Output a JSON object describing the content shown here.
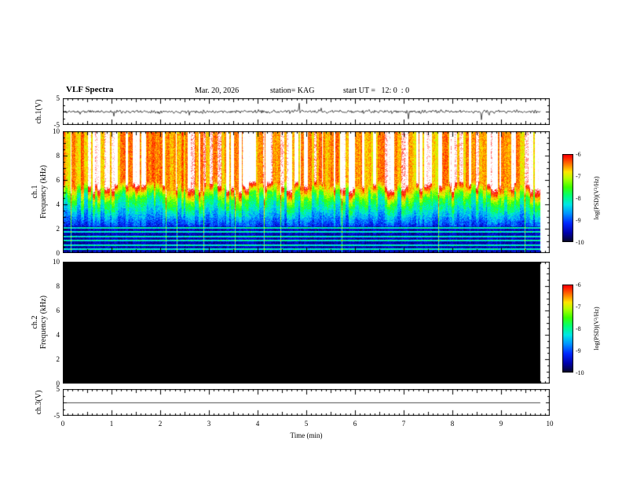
{
  "header": {
    "title": "VLF Spectra",
    "date": "Mar. 20, 2026",
    "station": "station= KAG",
    "start_ut": "start UT =   12: 0  : 0"
  },
  "x_axis": {
    "label": "Time (min)",
    "range": [
      0,
      10
    ],
    "ticks": [
      0,
      1,
      2,
      3,
      4,
      5,
      6,
      7,
      8,
      9,
      10
    ]
  },
  "chart_data": [
    {
      "type": "line",
      "panel": "ch1-waveform",
      "ylabel": "ch.1(V)",
      "ylim": [
        -5,
        5
      ],
      "yticks": [
        5,
        -5
      ],
      "data_end_min": 9.8,
      "baseline_v": 0,
      "noise_amplitude_v": 0.45,
      "spikes": [
        {
          "t": 0.35,
          "a": -1.2
        },
        {
          "t": 1.05,
          "a": -2.2
        },
        {
          "t": 2.6,
          "a": -1.4
        },
        {
          "t": 4.85,
          "a": 4.2
        },
        {
          "t": 5.3,
          "a": 1.8
        },
        {
          "t": 7.1,
          "a": -3.2
        },
        {
          "t": 7.35,
          "a": -1.8
        },
        {
          "t": 8.6,
          "a": -4.0
        },
        {
          "t": 8.75,
          "a": -2.4
        }
      ],
      "description": "Broadband noise band around 0 V with sparse impulsive spikes"
    },
    {
      "type": "heatmap",
      "panel": "ch1-spectrogram",
      "ylabel_line1": "ch.1",
      "ylabel_line2": "Frequency (kHz)",
      "ylim": [
        0,
        10
      ],
      "yticks": [
        0,
        2,
        4,
        6,
        8,
        10
      ],
      "data_end_min": 9.8,
      "colorbar": {
        "label": "log(PSD)(V²/Hz)",
        "range": [
          -10,
          -6
        ],
        "ticks": [
          -6,
          -7,
          -8,
          -9,
          -10
        ]
      },
      "bands": [
        {
          "f_khz": [
            6,
            10
          ],
          "psd": [
            -6.6,
            -5.6
          ],
          "appearance": "saturated red with white vertical bursts"
        },
        {
          "f_khz": [
            4,
            6
          ],
          "psd": [
            -7.9,
            -6.4
          ],
          "appearance": "jagged yellow-green transition edge"
        },
        {
          "f_khz": [
            2,
            4
          ],
          "psd": [
            -9.2,
            -7.6
          ],
          "appearance": "mottled green-cyan-blue"
        },
        {
          "f_khz": [
            0,
            2
          ],
          "psd": [
            -9.8,
            -9.0
          ],
          "appearance": "dark blue with bright horizontal lines"
        }
      ],
      "horizontal_lines_khz": [
        0.35,
        0.7,
        1.05,
        1.4,
        1.75,
        2.1
      ],
      "description": "Dense vertical burst striping across the full 0-9.8 min record"
    },
    {
      "type": "heatmap",
      "panel": "ch2-spectrogram",
      "ylabel_line1": "ch.2",
      "ylabel_line2": "Frequency (kHz)",
      "ylim": [
        0,
        10
      ],
      "yticks": [
        0,
        2,
        4,
        6,
        8,
        10
      ],
      "data_end_min": 9.8,
      "colorbar": {
        "label": "log(PSD)(V²/Hz)",
        "range": [
          -10,
          -6
        ],
        "ticks": [
          -6,
          -7,
          -8,
          -9,
          -10
        ]
      },
      "uniform_level": "below -10 (black, no signal)",
      "description": "No signal — uniformly black panel"
    },
    {
      "type": "line",
      "panel": "ch3-waveform",
      "ylabel": "ch.3(V)",
      "ylim": [
        -5,
        5
      ],
      "yticks": [
        5,
        -5
      ],
      "data_end_min": 9.8,
      "baseline_v": 0,
      "flat": true,
      "description": "Flat trace at 0 V"
    }
  ],
  "colors": {
    "axis": "#000000",
    "background": "#ffffff"
  }
}
